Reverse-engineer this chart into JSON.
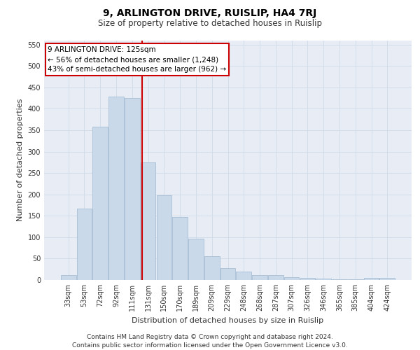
{
  "title": "9, ARLINGTON DRIVE, RUISLIP, HA4 7RJ",
  "subtitle": "Size of property relative to detached houses in Ruislip",
  "xlabel": "Distribution of detached houses by size in Ruislip",
  "ylabel": "Number of detached properties",
  "categories": [
    "33sqm",
    "53sqm",
    "72sqm",
    "92sqm",
    "111sqm",
    "131sqm",
    "150sqm",
    "170sqm",
    "189sqm",
    "209sqm",
    "229sqm",
    "248sqm",
    "268sqm",
    "287sqm",
    "307sqm",
    "326sqm",
    "346sqm",
    "365sqm",
    "385sqm",
    "404sqm",
    "424sqm"
  ],
  "bar_values": [
    12,
    167,
    358,
    428,
    425,
    275,
    198,
    147,
    97,
    55,
    27,
    20,
    11,
    11,
    7,
    5,
    3,
    1,
    1,
    5,
    5
  ],
  "bar_color": "#c9d9ea",
  "bar_edgecolor": "#a8bfd4",
  "vline_x": 4.62,
  "annotation_title": "9 ARLINGTON DRIVE: 125sqm",
  "annotation_line1": "← 56% of detached houses are smaller (1,248)",
  "annotation_line2": "43% of semi-detached houses are larger (962) →",
  "annotation_box_color": "#ffffff",
  "annotation_box_edgecolor": "#cc0000",
  "vline_color": "#cc0000",
  "ylim": [
    0,
    560
  ],
  "yticks": [
    0,
    50,
    100,
    150,
    200,
    250,
    300,
    350,
    400,
    450,
    500,
    550
  ],
  "grid_color": "#d0dae8",
  "background_color": "#e8edf5",
  "footer_line1": "Contains HM Land Registry data © Crown copyright and database right 2024.",
  "footer_line2": "Contains public sector information licensed under the Open Government Licence v3.0.",
  "title_fontsize": 10,
  "subtitle_fontsize": 8.5,
  "xlabel_fontsize": 8,
  "ylabel_fontsize": 8,
  "tick_fontsize": 7,
  "footer_fontsize": 6.5,
  "ann_fontsize": 7.5
}
